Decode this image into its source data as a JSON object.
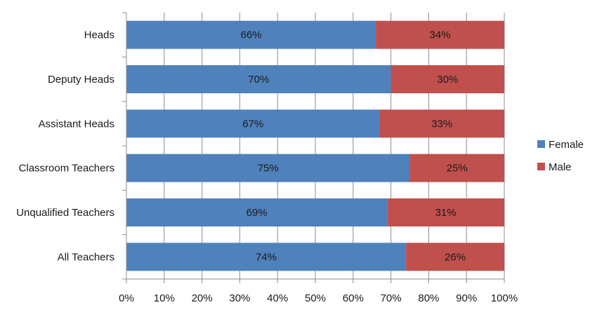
{
  "chart_data": {
    "type": "bar",
    "orientation": "horizontal",
    "stacked": "percent",
    "categories": [
      "Heads",
      "Deputy Heads",
      "Assistant Heads",
      "Classroom Teachers",
      "Unqualified Teachers",
      "All Teachers"
    ],
    "series": [
      {
        "name": "Female",
        "color": "#4f81bd",
        "values": [
          66,
          70,
          67,
          75,
          69,
          74
        ],
        "labels": [
          "66%",
          "70%",
          "67%",
          "75%",
          "69%",
          "74%"
        ]
      },
      {
        "name": "Male",
        "color": "#c0504d",
        "values": [
          34,
          30,
          33,
          25,
          31,
          26
        ],
        "labels": [
          "34%",
          "30%",
          "33%",
          "25%",
          "31%",
          "26%"
        ]
      }
    ],
    "xlim": [
      0,
      100
    ],
    "xticks": [
      "0%",
      "10%",
      "20%",
      "30%",
      "40%",
      "50%",
      "60%",
      "70%",
      "80%",
      "90%",
      "100%"
    ],
    "grid": true,
    "legend_position": "right"
  }
}
